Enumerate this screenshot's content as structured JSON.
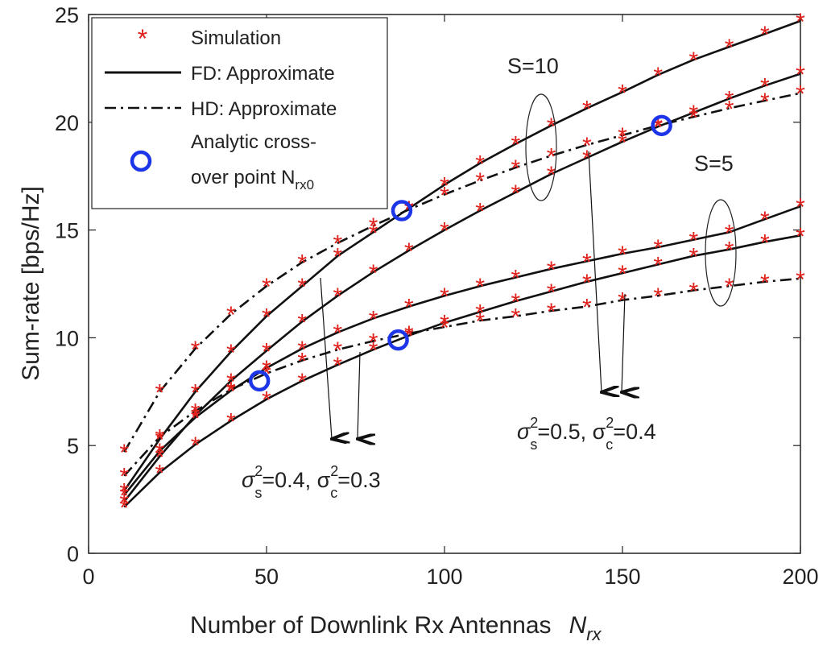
{
  "chart_data": {
    "type": "line",
    "xlabel": "Number of Downlink Rx Antennas",
    "xlabel_symbol": "N",
    "xlabel_symbol_sub": "rx",
    "ylabel": "Sum-rate [bps/Hz]",
    "xlim": [
      0,
      200
    ],
    "ylim": [
      0,
      25
    ],
    "x_ticks": [
      0,
      50,
      100,
      150,
      200
    ],
    "y_ticks": [
      0,
      5,
      10,
      15,
      20,
      25
    ],
    "grid": false,
    "legend_position": "top-left",
    "legend": [
      {
        "label": "Simulation",
        "style": "red-asterisk"
      },
      {
        "label": "FD: Approximate",
        "style": "solid-line"
      },
      {
        "label": "HD: Approximate",
        "style": "dash-dot-line"
      },
      {
        "label": "Analytic cross-over point N",
        "label_line1": "Analytic cross-",
        "label_line2": "over point N",
        "label_sub": "rx0",
        "style": "blue-circle"
      }
    ],
    "x": [
      10,
      20,
      30,
      40,
      50,
      60,
      70,
      80,
      90,
      100,
      110,
      120,
      130,
      140,
      150,
      160,
      170,
      180,
      190,
      200
    ],
    "series": [
      {
        "group": "S=10",
        "kind": "FD",
        "noise": "σs²=0.4, σc²=0.3",
        "values": [
          2.9,
          5.3,
          7.5,
          9.35,
          11.0,
          12.4,
          13.8,
          14.9,
          16.0,
          17.1,
          18.1,
          19.0,
          19.85,
          20.65,
          21.4,
          22.2,
          22.9,
          23.5,
          24.1,
          24.7
        ]
      },
      {
        "group": "S=10",
        "kind": "HD",
        "noise": "σs²=0.4, σc²=0.3",
        "values": [
          4.7,
          7.5,
          9.5,
          11.1,
          12.4,
          13.5,
          14.4,
          15.2,
          15.95,
          16.65,
          17.3,
          17.9,
          18.45,
          18.95,
          19.4,
          19.85,
          20.25,
          20.65,
          21.0,
          21.35
        ]
      },
      {
        "group": "S=10",
        "kind": "FD",
        "noise": "σs²=0.5, σc²=0.4",
        "values": [
          2.4,
          4.5,
          6.4,
          8.0,
          9.4,
          10.75,
          11.95,
          13.05,
          14.05,
          15.0,
          15.9,
          16.75,
          17.6,
          18.35,
          19.1,
          19.8,
          20.45,
          21.1,
          21.7,
          22.25
        ]
      },
      {
        "group": "S=5",
        "kind": "FD",
        "noise": "σs²=0.4, σc²=0.3",
        "values": [
          2.7,
          4.75,
          6.3,
          7.55,
          8.6,
          9.5,
          10.25,
          10.9,
          11.45,
          11.95,
          12.4,
          12.8,
          13.2,
          13.55,
          13.9,
          14.2,
          14.55,
          14.9,
          15.5,
          16.1
        ]
      },
      {
        "group": "S=5",
        "kind": "FD",
        "noise": "σs²=0.5, σc²=0.4",
        "values": [
          2.15,
          3.75,
          5.05,
          6.15,
          7.15,
          8.0,
          8.75,
          9.45,
          10.1,
          10.7,
          11.2,
          11.7,
          12.15,
          12.6,
          13.0,
          13.4,
          13.8,
          14.1,
          14.45,
          14.75
        ]
      },
      {
        "group": "S=5",
        "kind": "HD",
        "noise": "σs²=0.4, σc²=0.3",
        "values": [
          3.6,
          5.4,
          6.6,
          7.6,
          8.35,
          8.95,
          9.45,
          9.85,
          10.2,
          10.5,
          10.8,
          11.0,
          11.25,
          11.45,
          11.75,
          11.95,
          12.2,
          12.4,
          12.6,
          12.75
        ]
      }
    ],
    "crossover_points": [
      {
        "x": 48,
        "y": 8.0
      },
      {
        "x": 87,
        "y": 9.9
      },
      {
        "x": 88,
        "y": 15.9
      },
      {
        "x": 161,
        "y": 19.85
      }
    ],
    "annotations": {
      "s10": "S=10",
      "s5": "S=5",
      "noise1": {
        "pre": "σ",
        "sup": "2",
        "sub": "s",
        "mid": "=0.4, σ",
        "sup2": "2",
        "sub2": "c",
        "post": "=0.3"
      },
      "noise2": {
        "pre": "σ",
        "sup": "2",
        "sub": "s",
        "mid": "=0.5, σ",
        "sup2": "2",
        "sub2": "c",
        "post": "=0.4"
      }
    }
  }
}
